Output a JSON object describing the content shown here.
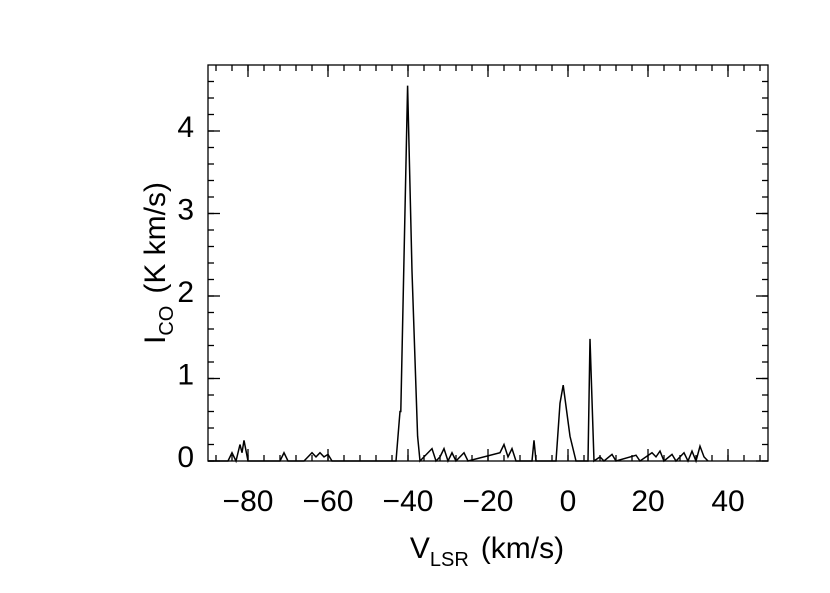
{
  "chart_data": {
    "type": "line",
    "xlabel": {
      "main": "V",
      "sub": "LSR",
      "rest": "(km/s)"
    },
    "ylabel": {
      "main": "I",
      "sub": "CO",
      "rest": "(K km/s)"
    },
    "xlim": [
      -90,
      50
    ],
    "ylim": [
      0,
      4.8
    ],
    "xticks": [
      -80,
      -60,
      -40,
      -20,
      0,
      20,
      40
    ],
    "yticks": [
      0,
      1,
      2,
      3,
      4
    ],
    "xminor": 4,
    "yminor": 5,
    "series": [
      {
        "color": "#000000",
        "x": [
          -90,
          -85,
          -84,
          -83,
          -82,
          -81.5,
          -81,
          -80,
          -72,
          -71,
          -70,
          -66,
          -65,
          -64,
          -63,
          -62,
          -61,
          -60,
          -59,
          -43,
          -42,
          -41.8,
          -40.1,
          -39,
          -37.6,
          -37,
          -34,
          -33,
          -32,
          -31,
          -30,
          -29,
          -28,
          -27,
          -26,
          -25,
          -17,
          -16,
          -15,
          -14,
          -13,
          -9,
          -8.5,
          -8,
          -3,
          -2,
          -1.2,
          0.5,
          2,
          5,
          5.5,
          6.5,
          8,
          9,
          11,
          12,
          17,
          18,
          21,
          22,
          23,
          24,
          26,
          27,
          29,
          30,
          31,
          32,
          33,
          34,
          35
        ],
        "values": [
          0,
          0,
          0.1,
          0,
          0.2,
          0.1,
          0.25,
          0,
          0,
          0.1,
          0,
          0,
          0.05,
          0.1,
          0.05,
          0.1,
          0.05,
          0.08,
          0,
          0,
          0.6,
          0.6,
          4.55,
          2.3,
          0.3,
          0,
          0.15,
          0,
          0.05,
          0.15,
          0,
          0.1,
          0,
          0.05,
          0.1,
          0,
          0.1,
          0.2,
          0.05,
          0.15,
          0,
          0,
          0.25,
          0,
          0,
          0.7,
          0.92,
          0.3,
          0,
          0,
          1.48,
          0,
          0.05,
          0,
          0.08,
          0,
          0.07,
          0,
          0.1,
          0.05,
          0.12,
          0,
          0.08,
          0,
          0.1,
          0,
          0.12,
          0,
          0.18,
          0.05,
          0
        ]
      }
    ]
  }
}
